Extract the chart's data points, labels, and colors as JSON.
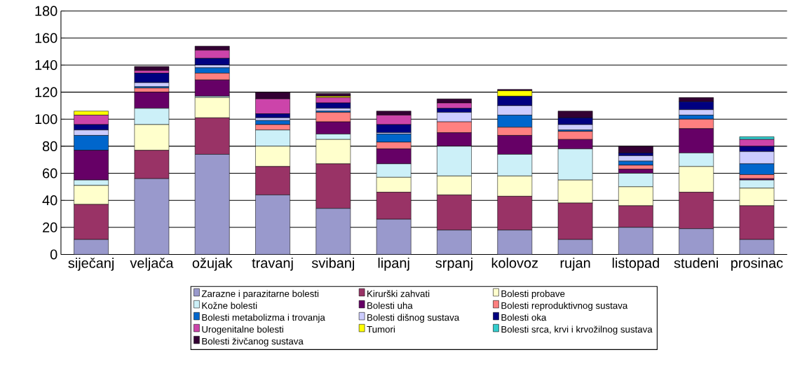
{
  "chart_data": {
    "type": "bar",
    "stacked": true,
    "categories": [
      "siječanj",
      "veljača",
      "ožujak",
      "travanj",
      "svibanj",
      "lipanj",
      "srpanj",
      "kolovoz",
      "rujan",
      "listopad",
      "studeni",
      "prosinac"
    ],
    "series": [
      {
        "name": "Zarazne i parazitarne bolesti",
        "color": "#9999cc",
        "values": [
          11,
          56,
          74,
          44,
          34,
          26,
          18,
          18,
          11,
          20,
          19,
          11
        ]
      },
      {
        "name": "Kirurški zahvati",
        "color": "#993366",
        "values": [
          26,
          21,
          27,
          21,
          33,
          20,
          26,
          25,
          27,
          16,
          27,
          25
        ]
      },
      {
        "name": "Bolesti probave",
        "color": "#ffffcc",
        "values": [
          14,
          19,
          15,
          15,
          18,
          11,
          14,
          15,
          17,
          14,
          19,
          13
        ]
      },
      {
        "name": "Kožne bolesti",
        "color": "#ccf0f8",
        "values": [
          4,
          12,
          1,
          12,
          4,
          10,
          22,
          16,
          23,
          10,
          10,
          6
        ]
      },
      {
        "name": "Bolesti uha",
        "color": "#660066",
        "values": [
          22,
          12,
          12,
          0,
          9,
          11,
          10,
          14,
          7,
          3,
          18,
          1
        ]
      },
      {
        "name": "Bolesti reproduktivnog sustava",
        "color": "#ff8080",
        "values": [
          0,
          3,
          5,
          4,
          7,
          5,
          8,
          6,
          6,
          3,
          7,
          3
        ]
      },
      {
        "name": "Bolesti metabolizma i trovanja",
        "color": "#0066cc",
        "values": [
          11,
          1,
          4,
          3,
          1,
          6,
          null,
          9,
          1,
          3,
          3,
          8
        ]
      },
      {
        "name": "Bolesti dišnog sustava",
        "color": "#ccccff",
        "values": [
          4,
          3,
          2,
          2,
          2,
          1,
          7,
          7,
          4,
          4,
          4,
          9
        ]
      },
      {
        "name": "Bolesti oka",
        "color": "#000080",
        "values": [
          4,
          7,
          5,
          3,
          4,
          6,
          3,
          7,
          5,
          2,
          6,
          4
        ]
      },
      {
        "name": "Urogenitalne bolesti",
        "color": "#cc44aa",
        "values": [
          7,
          2,
          6,
          11,
          4,
          7,
          4,
          0,
          0,
          0,
          null,
          5
        ]
      },
      {
        "name": "Tumori",
        "color": "#ffff00",
        "values": [
          3,
          0,
          0,
          0,
          1,
          0,
          0,
          4,
          0,
          0,
          0,
          0
        ]
      },
      {
        "name": "Bolesti srca, krvi i krvožilnog sustava",
        "color": "#33cccc",
        "values": [
          0,
          0,
          0,
          0,
          0,
          0,
          0,
          0,
          0,
          0,
          0,
          2
        ]
      },
      {
        "name": "Bolesti živčanog sustava",
        "color": "#330033",
        "values": [
          0,
          3,
          3,
          5,
          2,
          3,
          3,
          1,
          5,
          5,
          3,
          0
        ]
      }
    ],
    "ylim": [
      0,
      180
    ],
    "yticks": [
      0,
      20,
      40,
      60,
      80,
      100,
      120,
      140,
      160,
      180
    ],
    "grid": "y",
    "legend": "bottom"
  }
}
